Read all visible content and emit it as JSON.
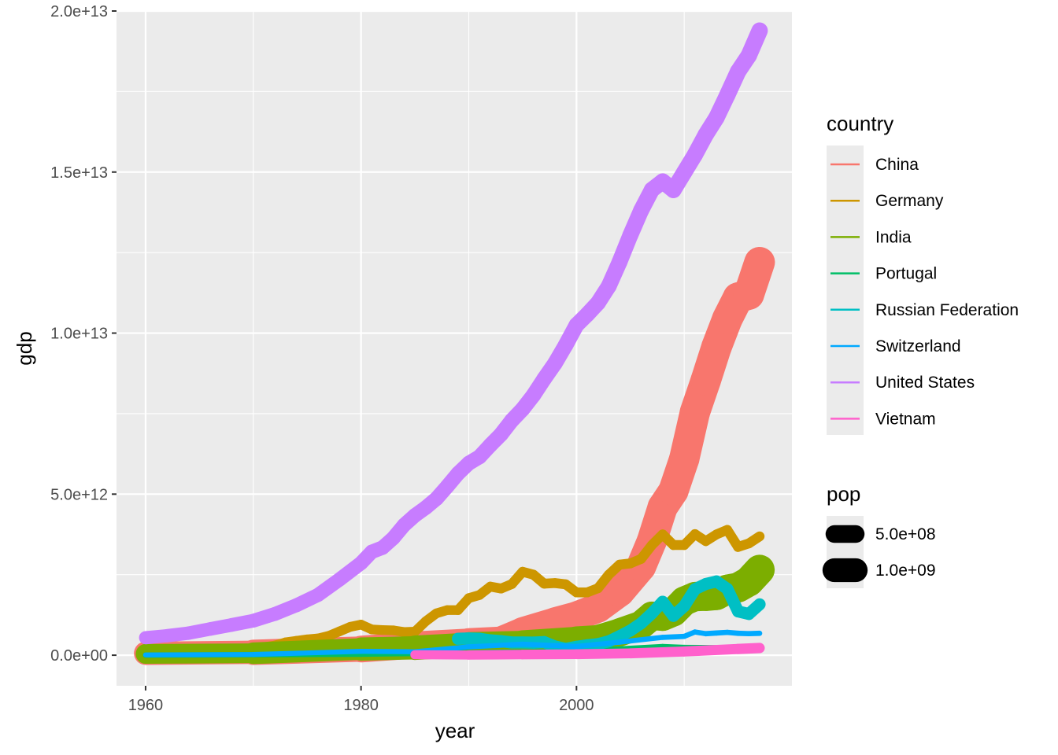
{
  "chart_data": {
    "type": "line",
    "title": "",
    "xlabel": "year",
    "ylabel": "gdp",
    "xlim": [
      1957.3,
      2020.0
    ],
    "ylim": [
      -950000000000.0,
      20000000000000.0
    ],
    "x_ticks": [
      1960,
      1980,
      2000
    ],
    "x_tick_labels": [
      "1960",
      "1980",
      "2000"
    ],
    "y_ticks": [
      0,
      5000000000000.0,
      10000000000000.0,
      15000000000000.0,
      20000000000000.0
    ],
    "y_tick_labels": [
      "0.0e+00",
      "5.0e+12",
      "1.0e+13",
      "1.5e+13",
      "2.0e+13"
    ],
    "grid": true,
    "legend": {
      "placement": "right",
      "color_title": "country",
      "size_title": "pop",
      "size_entries": [
        {
          "label": "5.0e+08",
          "pop": 500000000.0
        },
        {
          "label": "1.0e+09",
          "pop": 1000000000.0
        }
      ]
    },
    "series": [
      {
        "name": "China",
        "color": "#F8766D",
        "x": [
          1960,
          1970,
          1980,
          1985,
          1990,
          1993,
          1995,
          1998,
          2000,
          2002,
          2004,
          2006,
          2007,
          2008,
          2009,
          2010,
          2011,
          2012,
          2013,
          2014,
          2015,
          2016,
          2017
        ],
        "y": [
          60000000000.0,
          90000000000.0,
          190000000000.0,
          310000000000.0,
          400000000000.0,
          450000000000.0,
          730000000000.0,
          1030000000000.0,
          1210000000000.0,
          1470000000000.0,
          1960000000000.0,
          2750000000000.0,
          3550000000000.0,
          4600000000000.0,
          5100000000000.0,
          6090000000000.0,
          7550000000000.0,
          8530000000000.0,
          9570000000000.0,
          10440000000000.0,
          11100000000000.0,
          11200000000000.0,
          12200000000000.0
        ],
        "pop": [
          667000000.0,
          818000000.0,
          981000000.0,
          1050000000.0,
          1135000000.0,
          1170000000.0,
          1200000000.0,
          1240000000.0,
          1262000000.0,
          1280000000.0,
          1296000000.0,
          1311000000.0,
          1318000000.0,
          1325000000.0,
          1331000000.0,
          1337000000.0,
          1344000000.0,
          1350000000.0,
          1357000000.0,
          1364000000.0,
          1371000000.0,
          1379000000.0,
          1386000000.0
        ]
      },
      {
        "name": "Germany",
        "color": "#CD9600",
        "x": [
          1970,
          1971,
          1972,
          1973,
          1974,
          1975,
          1976,
          1977,
          1978,
          1979,
          1980,
          1981,
          1982,
          1983,
          1984,
          1985,
          1986,
          1987,
          1988,
          1989,
          1990,
          1991,
          1992,
          1993,
          1994,
          1995,
          1996,
          1997,
          1998,
          1999,
          2000,
          2001,
          2002,
          2003,
          2004,
          2005,
          2006,
          2007,
          2008,
          2009,
          2010,
          2011,
          2012,
          2013,
          2014,
          2015,
          2016,
          2017
        ],
        "y": [
          210000000000.0,
          250000000000.0,
          300000000000.0,
          398000000000.0,
          445000000000.0,
          490000000000.0,
          520000000000.0,
          600000000000.0,
          740000000000.0,
          880000000000.0,
          950000000000.0,
          800000000000.0,
          780000000000.0,
          770000000000.0,
          720000000000.0,
          730000000000.0,
          1050000000000.0,
          1300000000000.0,
          1400000000000.0,
          1400000000000.0,
          1770000000000.0,
          1870000000000.0,
          2130000000000.0,
          2070000000000.0,
          2210000000000.0,
          2590000000000.0,
          2500000000000.0,
          2220000000000.0,
          2240000000000.0,
          2200000000000.0,
          1950000000000.0,
          1950000000000.0,
          2080000000000.0,
          2500000000000.0,
          2810000000000.0,
          2850000000000.0,
          2990000000000.0,
          3420000000000.0,
          3750000000000.0,
          3420000000000.0,
          3420000000000.0,
          3760000000000.0,
          3540000000000.0,
          3750000000000.0,
          3890000000000.0,
          3360000000000.0,
          3470000000000.0,
          3690000000000.0
        ],
        "pop": [
          78000000.0,
          78000000.0,
          78000000.0,
          79000000.0,
          79000000.0,
          78000000.0,
          78000000.0,
          78000000.0,
          78000000.0,
          78000000.0,
          78000000.0,
          78000000.0,
          78000000.0,
          78000000.0,
          78000000.0,
          78000000.0,
          78000000.0,
          78000000.0,
          78000000.0,
          79000000.0,
          79000000.0,
          80000000.0,
          81000000.0,
          81000000.0,
          81000000.0,
          82000000.0,
          82000000.0,
          82000000.0,
          82000000.0,
          82000000.0,
          82000000.0,
          82000000.0,
          82000000.0,
          83000000.0,
          83000000.0,
          82000000.0,
          82000000.0,
          82000000.0,
          82000000.0,
          82000000.0,
          82000000.0,
          80000000.0,
          80000000.0,
          81000000.0,
          81000000.0,
          82000000.0,
          82000000.0,
          83000000.0
        ]
      },
      {
        "name": "India",
        "color": "#7CAE00",
        "x": [
          1960,
          1970,
          1980,
          1985,
          1990,
          1995,
          2000,
          2002,
          2004,
          2006,
          2007,
          2008,
          2009,
          2010,
          2011,
          2012,
          2013,
          2014,
          2015,
          2016,
          2017
        ],
        "y": [
          40000000000.0,
          60000000000.0,
          190000000000.0,
          230000000000.0,
          320000000000.0,
          360000000000.0,
          470000000000.0,
          510000000000.0,
          710000000000.0,
          940000000000.0,
          1220000000000.0,
          1200000000000.0,
          1340000000000.0,
          1680000000000.0,
          1820000000000.0,
          1830000000000.0,
          1860000000000.0,
          2040000000000.0,
          2100000000000.0,
          2290000000000.0,
          2650000000000.0
        ],
        "pop": [
          450000000.0,
          555000000.0,
          697000000.0,
          780000000.0,
          873000000.0,
          964000000.0,
          1053000000.0,
          1090000000.0,
          1126000000.0,
          1162000000.0,
          1179000000.0,
          1197000000.0,
          1214000000.0,
          1231000000.0,
          1247000000.0,
          1263000000.0,
          1279000000.0,
          1294000000.0,
          1309000000.0,
          1325000000.0,
          1339000000.0
        ]
      },
      {
        "name": "Portugal",
        "color": "#00BE67",
        "x": [
          1960,
          1980,
          1990,
          2000,
          2008,
          2010,
          2017
        ],
        "y": [
          3000000000.0,
          32000000000.0,
          79000000000.0,
          118000000000.0,
          263000000000.0,
          238000000000.0,
          220000000000.0
        ],
        "pop": [
          8900000.0,
          9800000.0,
          10000000.0,
          10300000.0,
          10600000.0,
          10600000.0,
          10300000.0
        ]
      },
      {
        "name": "Russian Federation",
        "color": "#00BFC4",
        "x": [
          1989,
          1990,
          1991,
          1992,
          1993,
          1994,
          1995,
          1996,
          1997,
          1998,
          1999,
          2000,
          2001,
          2002,
          2003,
          2004,
          2005,
          2006,
          2007,
          2008,
          2009,
          2010,
          2011,
          2012,
          2013,
          2014,
          2015,
          2016,
          2017
        ],
        "y": [
          510000000000.0,
          520000000000.0,
          510000000000.0,
          460000000000.0,
          435000000000.0,
          395000000000.0,
          395000000000.0,
          390000000000.0,
          405000000000.0,
          270000000000.0,
          196000000000.0,
          260000000000.0,
          307000000000.0,
          345000000000.0,
          430000000000.0,
          591000000000.0,
          764000000000.0,
          990000000000.0,
          1300000000000.0,
          1660000000000.0,
          1220000000000.0,
          1520000000000.0,
          2050000000000.0,
          2210000000000.0,
          2290000000000.0,
          2060000000000.0,
          1360000000000.0,
          1280000000000.0,
          1580000000000.0
        ],
        "pop": [
          147600000.0,
          148000000.0,
          148300000.0,
          148500000.0,
          148500000.0,
          148300000.0,
          148000000.0,
          147700000.0,
          147400000.0,
          147100000.0,
          146700000.0,
          146600000.0,
          145900000.0,
          145200000.0,
          144700000.0,
          144300000.0,
          143800000.0,
          143400000.0,
          142800000.0,
          142700000.0,
          142700000.0,
          142900000.0,
          143000000.0,
          143200000.0,
          143500000.0,
          143800000.0,
          144200000.0,
          144300000.0,
          144500000.0
        ]
      },
      {
        "name": "Switzerland",
        "color": "#00A9FF",
        "x": [
          1960,
          1970,
          1980,
          1985,
          1990,
          1995,
          2000,
          2004,
          2008,
          2010,
          2011,
          2012,
          2013,
          2014,
          2015,
          2016,
          2017
        ],
        "y": [
          9500000000.0,
          21000000000.0,
          119000000000.0,
          108000000000.0,
          259000000000.0,
          342000000000.0,
          272000000000.0,
          405000000000.0,
          554000000000.0,
          583000000000.0,
          720000000000.0,
          668000000000.0,
          689000000000.0,
          709000000000.0,
          680000000000.0,
          669000000000.0,
          679000000000.0
        ],
        "pop": [
          5300000.0,
          6200000.0,
          6300000.0,
          6500000.0,
          6700000.0,
          7000000.0,
          7200000.0,
          7400000.0,
          7600000.0,
          7800000.0,
          7900000.0,
          8000000.0,
          8100000.0,
          8200000.0,
          8300000.0,
          8400000.0,
          8500000.0
        ]
      },
      {
        "name": "United States",
        "color": "#C77CFF",
        "x": [
          1960,
          1962,
          1964,
          1966,
          1968,
          1970,
          1972,
          1974,
          1976,
          1978,
          1980,
          1981,
          1982,
          1983,
          1984,
          1985,
          1986,
          1987,
          1988,
          1989,
          1990,
          1991,
          1992,
          1993,
          1994,
          1995,
          1996,
          1997,
          1998,
          1999,
          2000,
          2001,
          2002,
          2003,
          2004,
          2005,
          2006,
          2007,
          2008,
          2009,
          2010,
          2011,
          2012,
          2013,
          2014,
          2015,
          2016,
          2017
        ],
        "y": [
          543000000000.0,
          605000000000.0,
          685000000000.0,
          815000000000.0,
          940000000000.0,
          1070000000000.0,
          1280000000000.0,
          1550000000000.0,
          1870000000000.0,
          2350000000000.0,
          2860000000000.0,
          3210000000000.0,
          3340000000000.0,
          3640000000000.0,
          4040000000000.0,
          4340000000000.0,
          4580000000000.0,
          4860000000000.0,
          5240000000000.0,
          5640000000000.0,
          5960000000000.0,
          6160000000000.0,
          6520000000000.0,
          6860000000000.0,
          7290000000000.0,
          7640000000000.0,
          8070000000000.0,
          8580000000000.0,
          9060000000000.0,
          9630000000000.0,
          10250000000000.0,
          10580000000000.0,
          10940000000000.0,
          11460000000000.0,
          12210000000000.0,
          13040000000000.0,
          13810000000000.0,
          14450000000000.0,
          14710000000000.0,
          14440000000000.0,
          14990000000000.0,
          15540000000000.0,
          16160000000000.0,
          16690000000000.0,
          17390000000000.0,
          18120000000000.0,
          18620000000000.0,
          19390000000000.0
        ],
        "pop": [
          180700000.0,
          186700000.0,
          191900000.0,
          196400000.0,
          200700000.0,
          205200000.0,
          209900000.0,
          213900000.0,
          218000000.0,
          222200000.0,
          227100000.0,
          229300000.0,
          231600000.0,
          233800000.0,
          235900000.0,
          238000000.0,
          240200000.0,
          242400000.0,
          244800000.0,
          247000000.0,
          250000000.0,
          253300000.0,
          256600000.0,
          259800000.0,
          263000000.0,
          266300000.0,
          269300000.0,
          272500000.0,
          275800000.0,
          279100000.0,
          282000000.0,
          285000000.0,
          287800000.0,
          290400000.0,
          293300000.0,
          296000000.0,
          298800000.0,
          301700000.0,
          304000000.0,
          307100000.0,
          309300000.0,
          311500000.0,
          313900000.0,
          316000000.0,
          318400000.0,
          320700000.0,
          323100000.0,
          325100000.0
        ]
      },
      {
        "name": "Vietnam",
        "color": "#FF61CC",
        "x": [
          1985,
          1990,
          1995,
          2000,
          2005,
          2010,
          2015,
          2017
        ],
        "y": [
          14000000000.0,
          6500000000.0,
          20700000000.0,
          31200000000.0,
          57600000000.0,
          115900000000.0,
          193000000000.0,
          224000000000.0
        ],
        "pop": [
          60000000.0,
          68000000.0,
          75000000.0,
          80000000.0,
          84000000.0,
          88000000.0,
          93000000.0,
          95000000.0
        ]
      }
    ]
  }
}
